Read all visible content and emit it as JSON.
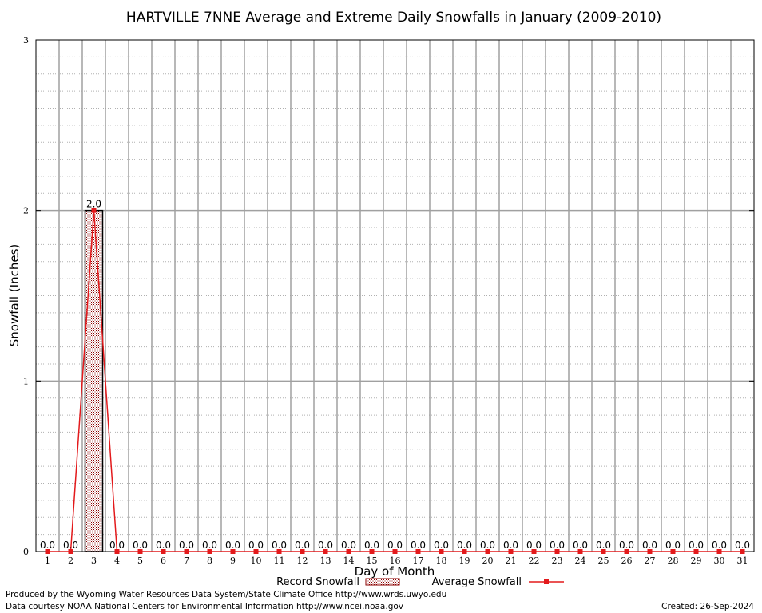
{
  "chart_data": {
    "type": "bar",
    "title": "HARTVILLE 7NNE Average and Extreme Daily Snowfalls in January (2009-2010)",
    "xlabel": "Day of Month",
    "ylabel": "Snowfall (Inches)",
    "ylim": [
      0,
      3
    ],
    "yticks": [
      "0",
      "1",
      "2",
      "3"
    ],
    "categories": [
      "1",
      "2",
      "3",
      "4",
      "5",
      "6",
      "7",
      "8",
      "9",
      "10",
      "11",
      "12",
      "13",
      "14",
      "15",
      "16",
      "17",
      "18",
      "19",
      "20",
      "21",
      "22",
      "23",
      "24",
      "25",
      "26",
      "27",
      "28",
      "29",
      "30",
      "31"
    ],
    "series": [
      {
        "name": "Record Snowfall",
        "kind": "bar",
        "color": "#8b0000",
        "values": [
          0,
          0,
          2,
          0,
          0,
          0,
          0,
          0,
          0,
          0,
          0,
          0,
          0,
          0,
          0,
          0,
          0,
          0,
          0,
          0,
          0,
          0,
          0,
          0,
          0,
          0,
          0,
          0,
          0,
          0,
          0
        ],
        "labels": [
          "0.0",
          "0.0",
          "2.0",
          "0.0",
          "0.0",
          "0.0",
          "0.0",
          "0.0",
          "0.0",
          "0.0",
          "0.0",
          "0.0",
          "0.0",
          "0.0",
          "0.0",
          "0.0",
          "0.0",
          "0.0",
          "0.0",
          "0.0",
          "0.0",
          "0.0",
          "0.0",
          "0.0",
          "0.0",
          "0.0",
          "0.0",
          "0.0",
          "0.0",
          "0.0",
          "0.0"
        ]
      },
      {
        "name": "Average Snowfall",
        "kind": "line",
        "color": "#e31a1c",
        "values": [
          0,
          0,
          2,
          0,
          0,
          0,
          0,
          0,
          0,
          0,
          0,
          0,
          0,
          0,
          0,
          0,
          0,
          0,
          0,
          0,
          0,
          0,
          0,
          0,
          0,
          0,
          0,
          0,
          0,
          0,
          0
        ]
      }
    ],
    "grid": true,
    "legend_position": "bottom-center"
  },
  "footer": {
    "produced_by": "Produced by the Wyoming Water Resources Data System/State Climate Office http://www.wrds.uwyo.edu",
    "data_courtesy": "Data courtesy NOAA National Centers for Environmental Information http://www.ncei.noaa.gov",
    "created": "Created:  26-Sep-2024"
  }
}
